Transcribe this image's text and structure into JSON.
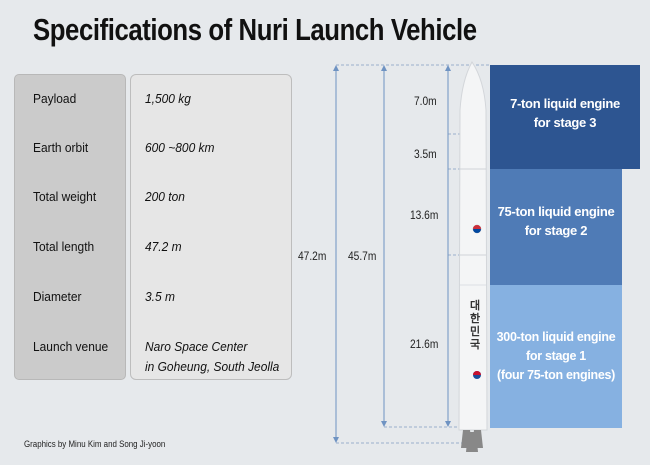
{
  "title": "Specifications of Nuri Launch Vehicle",
  "specs": [
    {
      "label": "Payload",
      "value": "1,500 kg"
    },
    {
      "label": "Earth orbit",
      "value": "600 ~800 km"
    },
    {
      "label": "Total weight",
      "value": "200 ton"
    },
    {
      "label": "Total length",
      "value": "47.2 m"
    },
    {
      "label": "Diameter",
      "value": "3.5 m"
    },
    {
      "label": "Launch venue",
      "value": "Naro Space Center",
      "value2": "in Goheung, South Jeolla"
    }
  ],
  "dimensions": {
    "total_with_engine": "47.2m",
    "total_body": "45.7m",
    "stage3_top": "7.0m",
    "stage3_bottom": "3.5m",
    "stage2": "13.6m",
    "stage1": "21.6m"
  },
  "stages": [
    {
      "line1": "7-ton liquid engine",
      "line2": "for stage 3",
      "color": "#2d5591"
    },
    {
      "line1": "75-ton liquid engine",
      "line2": "for stage 2",
      "color": "#4f7bb6"
    },
    {
      "line1": "300-ton liquid engine",
      "line2": "for stage 1",
      "line3": "(four 75-ton engines)",
      "color": "#86b1e1"
    }
  ],
  "rocket_text": "대한민국",
  "credit": "Graphics by Minu Kim and Song Ji-yoon"
}
